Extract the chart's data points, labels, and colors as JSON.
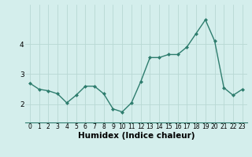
{
  "x": [
    0,
    1,
    2,
    3,
    4,
    5,
    6,
    7,
    8,
    9,
    10,
    11,
    12,
    13,
    14,
    15,
    16,
    17,
    18,
    19,
    20,
    21,
    22,
    23
  ],
  "y": [
    2.7,
    2.5,
    2.45,
    2.35,
    2.05,
    2.3,
    2.6,
    2.6,
    2.35,
    1.85,
    1.75,
    2.05,
    2.75,
    3.55,
    3.55,
    3.65,
    3.65,
    3.9,
    4.35,
    4.8,
    4.1,
    2.55,
    2.3,
    2.5
  ],
  "line_color": "#2e7d6e",
  "marker": "D",
  "marker_size": 2.0,
  "linewidth": 1.0,
  "bg_color": "#d4eeec",
  "grid_color": "#b8d8d4",
  "xlabel": "Humidex (Indice chaleur)",
  "xlabel_fontsize": 7.5,
  "xtick_fontsize": 5.5,
  "ytick_fontsize": 6.5,
  "xtick_labels": [
    "0",
    "1",
    "2",
    "3",
    "4",
    "5",
    "6",
    "7",
    "8",
    "9",
    "10",
    "11",
    "12",
    "13",
    "14",
    "15",
    "16",
    "17",
    "18",
    "19",
    "20",
    "21",
    "22",
    "23"
  ],
  "ytick_labels": [
    "2",
    "3",
    "4"
  ],
  "ylim": [
    1.4,
    5.3
  ],
  "xlim": [
    -0.5,
    23.5
  ],
  "yticks": [
    2,
    3,
    4
  ]
}
